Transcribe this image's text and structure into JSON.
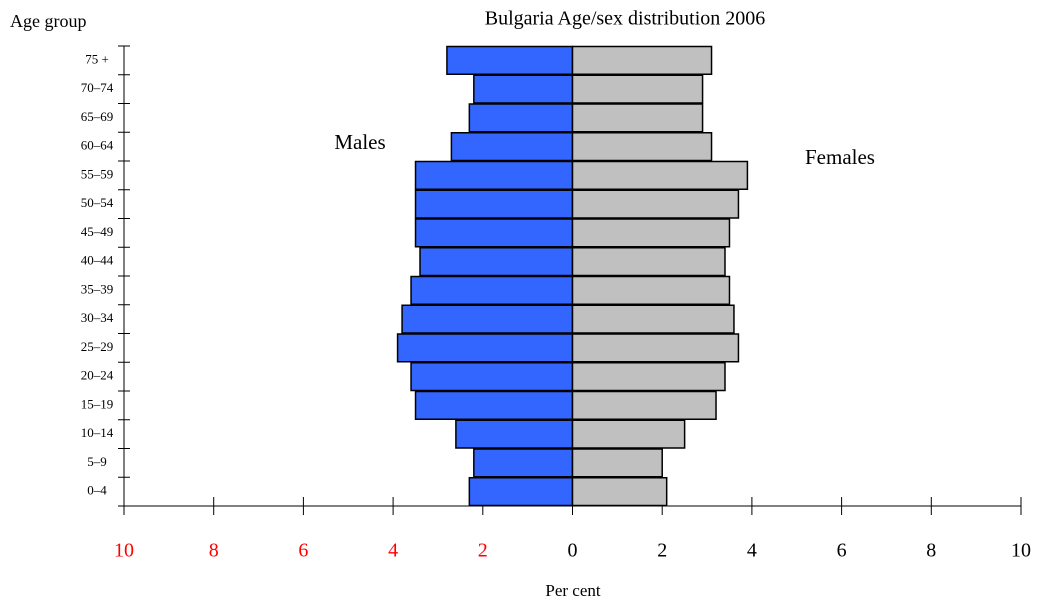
{
  "chart_data": {
    "type": "pyramid",
    "title": "Bulgaria  Age/sex distribution 2006",
    "y_label": "Age group",
    "x_label": "Per cent",
    "categories": [
      "0–4",
      "5–9",
      "10–14",
      "15–19",
      "20–24",
      "25–29",
      "30–34",
      "35–39",
      "40–44",
      "45–49",
      "50–54",
      "55–59",
      "60–64",
      "65–69",
      "70–74",
      "75 +"
    ],
    "series": [
      {
        "name": "Males",
        "color": "#3366ff",
        "side": "left",
        "values": [
          2.3,
          2.2,
          2.6,
          3.5,
          3.6,
          3.9,
          3.8,
          3.6,
          3.4,
          3.5,
          3.5,
          3.5,
          2.7,
          2.3,
          2.2,
          2.8
        ]
      },
      {
        "name": "Females",
        "color": "#c0c0c0",
        "side": "right",
        "values": [
          2.1,
          2.0,
          2.5,
          3.2,
          3.4,
          3.7,
          3.6,
          3.5,
          3.4,
          3.5,
          3.7,
          3.9,
          3.1,
          2.9,
          2.9,
          3.1
        ]
      }
    ],
    "xlim": [
      -10,
      10
    ],
    "xticks": [
      {
        "value": -10,
        "label": "10"
      },
      {
        "value": -8,
        "label": "8"
      },
      {
        "value": -6,
        "label": "6"
      },
      {
        "value": -4,
        "label": "4"
      },
      {
        "value": -2,
        "label": "2"
      },
      0,
      2,
      4,
      6,
      8,
      10
    ],
    "negative_tick_color": "#ff0000"
  }
}
